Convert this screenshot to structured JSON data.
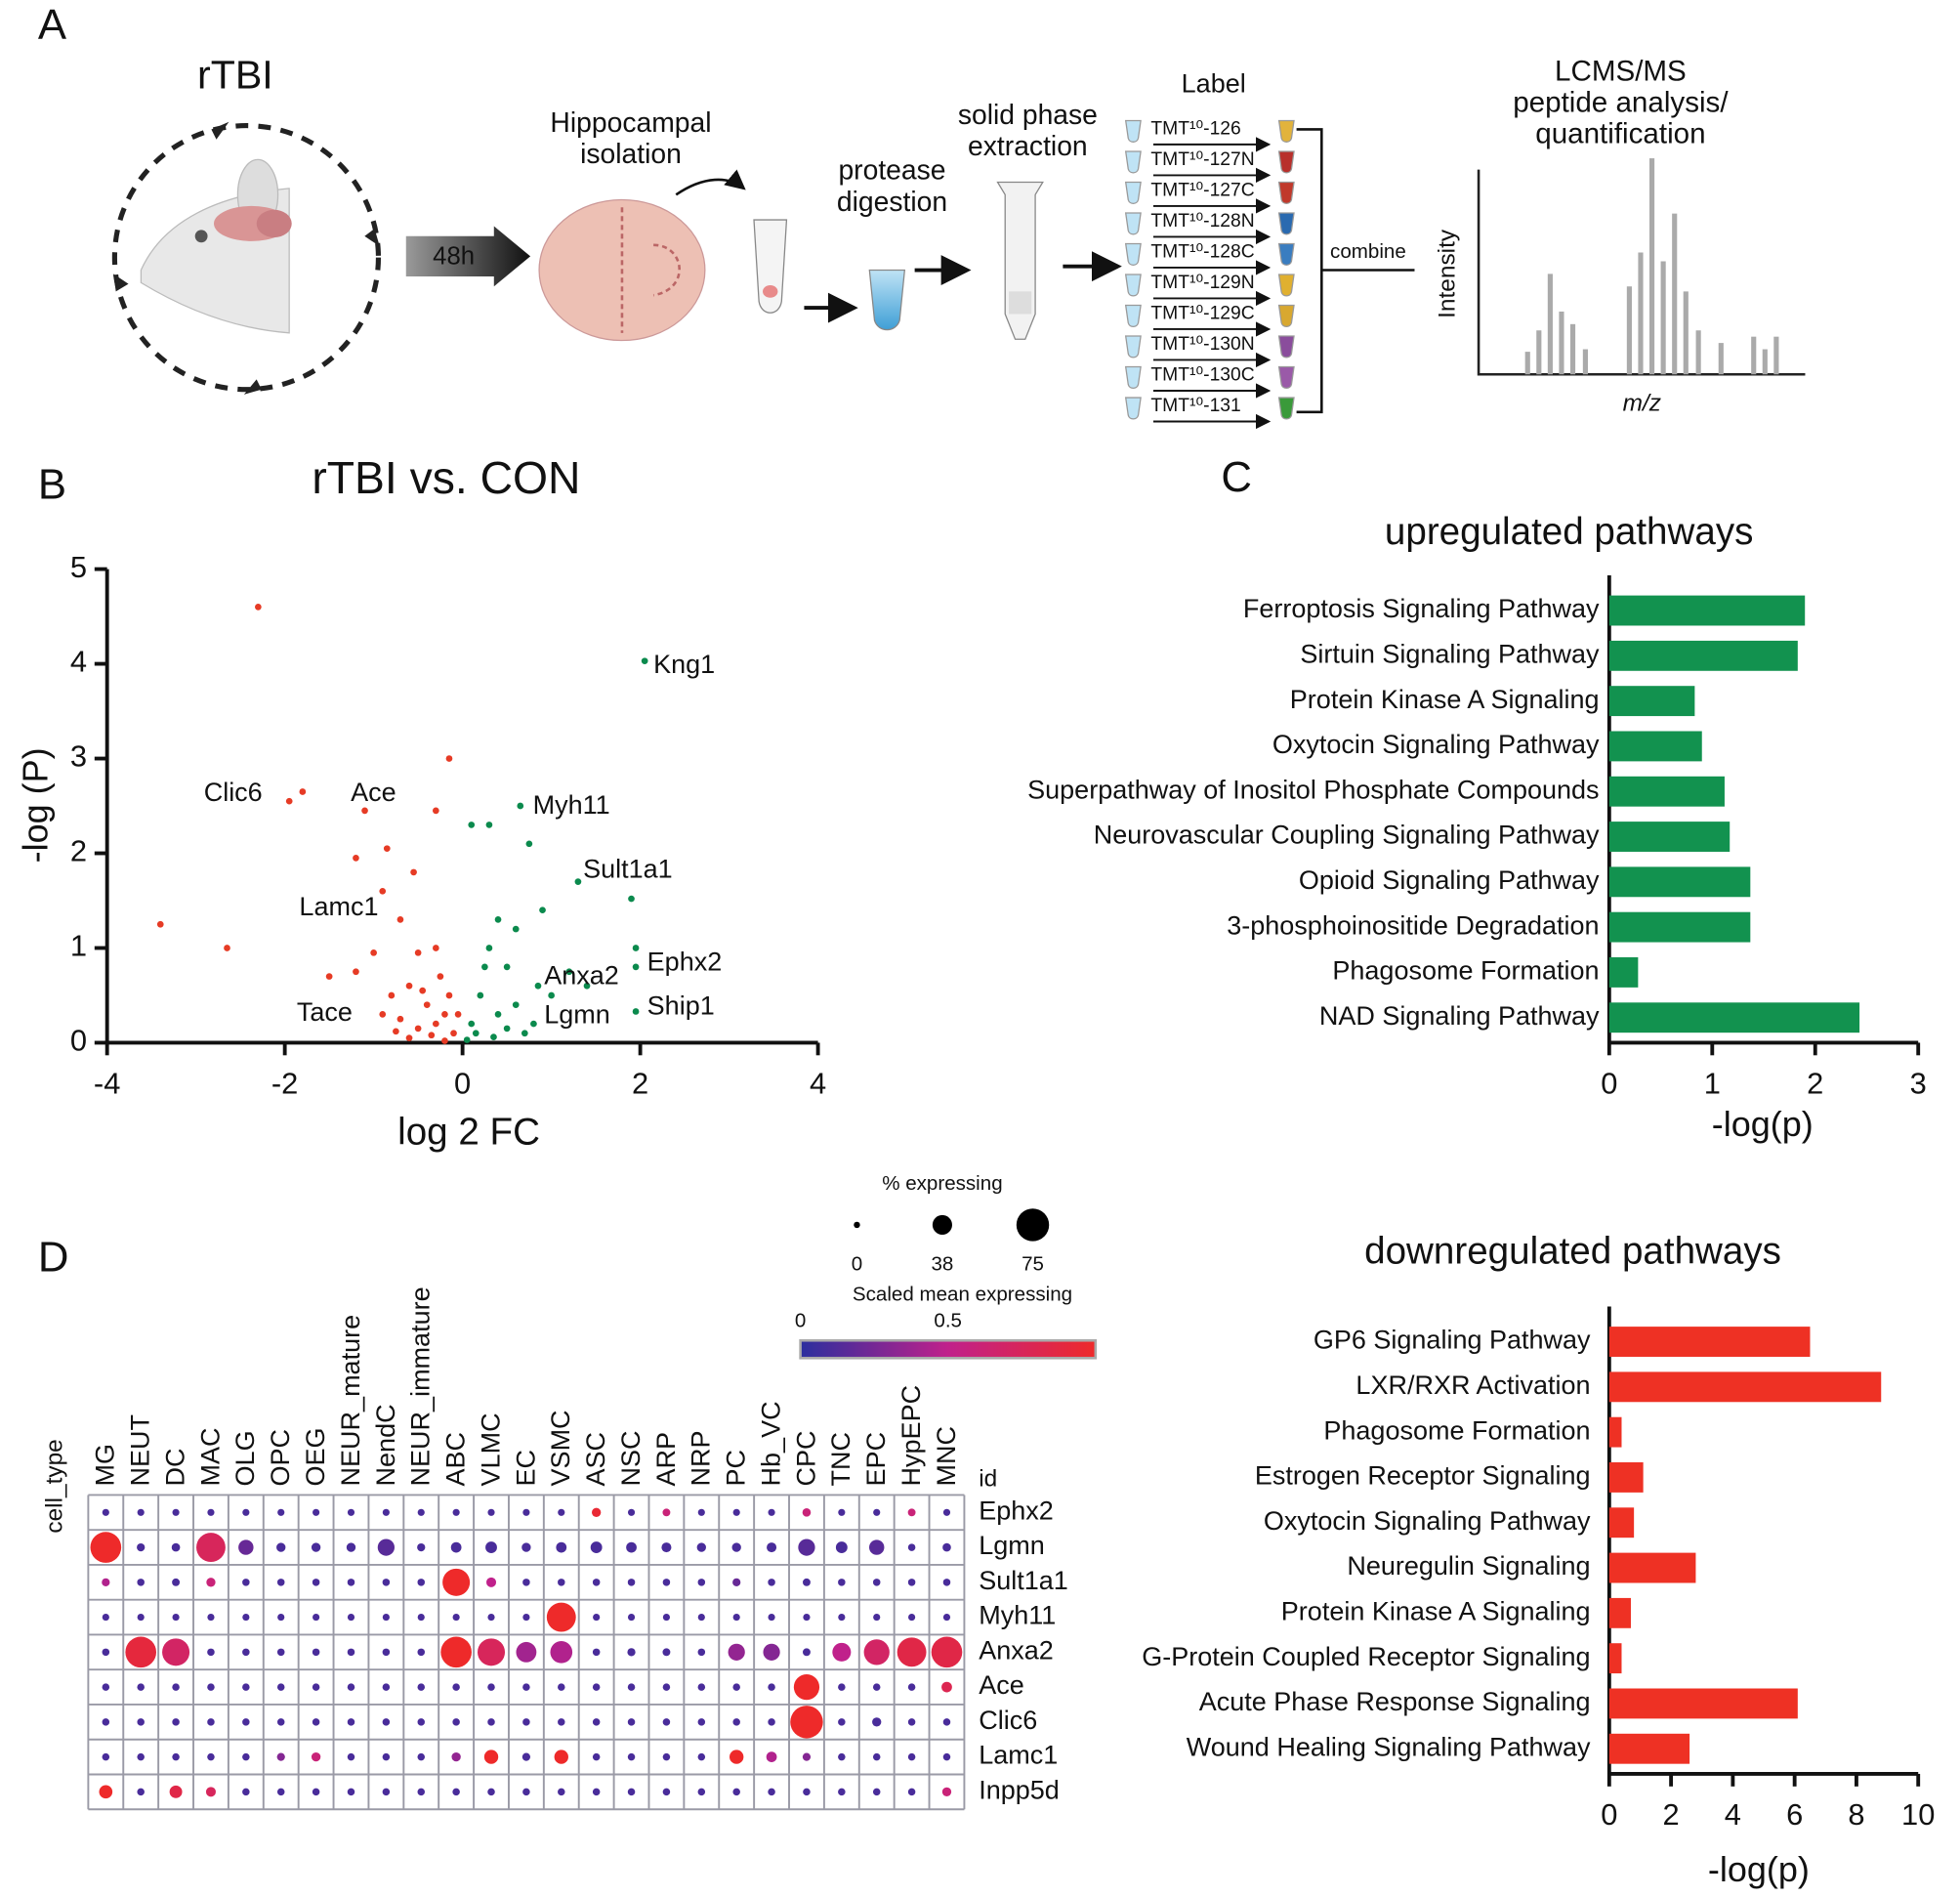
{
  "panel_labels": [
    "A",
    "B",
    "C",
    "D"
  ],
  "panel_a": {
    "model": "rTBI",
    "time": "48h",
    "steps": [
      [
        "Hippocampal",
        "isolation"
      ],
      [
        "protease",
        "digestion"
      ],
      [
        "solid phase",
        "extraction"
      ]
    ],
    "label_title": "Label",
    "tmt": [
      {
        "text": "TMT¹⁰-126",
        "color": "#e2b33c"
      },
      {
        "text": "TMT¹⁰-127N",
        "color": "#b8302c"
      },
      {
        "text": "TMT¹⁰-127C",
        "color": "#c0392b"
      },
      {
        "text": "TMT¹⁰-128N",
        "color": "#2a6ab0"
      },
      {
        "text": "TMT¹⁰-128C",
        "color": "#3a7dc0"
      },
      {
        "text": "TMT¹⁰-129N",
        "color": "#e0b030"
      },
      {
        "text": "TMT¹⁰-129C",
        "color": "#d8a830"
      },
      {
        "text": "TMT¹⁰-130N",
        "color": "#8a4d9c"
      },
      {
        "text": "TMT¹⁰-130C",
        "color": "#9a5aa8"
      },
      {
        "text": "TMT¹⁰-131",
        "color": "#3a9a3a"
      }
    ],
    "combine": "combine",
    "analysis": [
      "LCMS/MS",
      "peptide analysis/",
      "quantification"
    ],
    "y_axis": "Intensity",
    "x_axis": "m/z"
  },
  "chart_data": [
    {
      "type": "scatter",
      "title": "rTBI vs. CON",
      "xlabel": "log 2 FC",
      "ylabel": "-log (P)",
      "xlim": [
        -4,
        4
      ],
      "xticks": [
        -4,
        -2,
        0,
        2,
        4
      ],
      "ylim": [
        0,
        5
      ],
      "yticks": [
        0,
        1,
        2,
        3,
        4,
        5
      ],
      "series": [
        {
          "color": "#e63b25",
          "x": [
            -2.3,
            -0.15,
            -1.8,
            -1.95,
            -1.1,
            -0.3,
            -3.4,
            -2.65,
            -1.2,
            -0.85,
            -0.55,
            -0.9,
            -0.7,
            -1.5,
            -1.0,
            -0.5,
            -0.3,
            -0.6,
            -0.4,
            -0.2,
            -0.8,
            -0.1,
            -0.3,
            -0.5,
            -0.15,
            -0.7,
            -1.2,
            -0.25,
            -0.45,
            -0.35,
            -0.6,
            -0.9,
            -0.2,
            -0.05,
            -0.75
          ],
          "values": [
            4.6,
            3.0,
            2.65,
            2.55,
            2.45,
            2.45,
            1.25,
            1.0,
            1.95,
            2.05,
            1.8,
            1.6,
            1.3,
            0.7,
            0.95,
            0.95,
            1.0,
            0.6,
            0.4,
            0.3,
            0.5,
            0.1,
            0.2,
            0.15,
            0.5,
            0.25,
            0.75,
            0.7,
            0.55,
            0.08,
            0.05,
            0.3,
            0.02,
            0.3,
            0.12
          ]
        },
        {
          "color": "#0b8a4d",
          "x": [
            2.05,
            0.65,
            0.1,
            0.3,
            0.75,
            1.3,
            1.9,
            0.9,
            1.95,
            1.95,
            1.95,
            0.6,
            0.4,
            0.3,
            0.5,
            1.2,
            0.85,
            1.4,
            0.2,
            0.1,
            0.4,
            0.6,
            0.8,
            0.25,
            1.0,
            0.15,
            0.5,
            0.05,
            0.35,
            0.7
          ],
          "values": [
            4.03,
            2.5,
            2.3,
            2.3,
            2.1,
            1.7,
            1.52,
            1.4,
            1.0,
            0.8,
            0.33,
            1.2,
            1.3,
            1.0,
            0.8,
            0.75,
            0.6,
            0.6,
            0.5,
            0.2,
            0.3,
            0.4,
            0.2,
            0.8,
            0.5,
            0.1,
            0.15,
            0.03,
            0.06,
            0.1
          ]
        }
      ],
      "annotations": [
        "Kng1",
        "Myh11",
        "Sult1a1",
        "Ephx2",
        "Ship1",
        "Anxa2",
        "Lgmn",
        "Clic6",
        "Ace",
        "Lamc1",
        "Tace"
      ]
    },
    {
      "type": "bar",
      "orientation": "horizontal",
      "title": "upregulated pathways",
      "xlabel": "-log(p)",
      "color": "#12924f",
      "categories": [
        "Ferroptosis Signaling Pathway",
        "Sirtuin Signaling Pathway",
        "Protein Kinase A Signaling",
        "Oxytocin Signaling Pathway",
        "Superpathway of Inositol Phosphate Compounds",
        "Neurovascular Coupling Signaling Pathway",
        "Opioid Signaling Pathway",
        "3-phosphoinositide Degradation",
        "Phagosome Formation",
        "NAD Signaling Pathway"
      ],
      "values": [
        1.9,
        1.83,
        0.83,
        0.9,
        1.12,
        1.17,
        1.37,
        1.37,
        0.28,
        2.43
      ],
      "xlim": [
        0,
        3
      ],
      "xticks": [
        0,
        1,
        2,
        3
      ]
    },
    {
      "type": "bar",
      "orientation": "horizontal",
      "title": "downregulated pathways",
      "xlabel": "-log(p)",
      "color": "#ee3124",
      "categories": [
        "GP6 Signaling Pathway",
        "LXR/RXR Activation",
        "Phagosome Formation",
        "Estrogen Receptor Signaling",
        "Oxytocin Signaling Pathway",
        "Neuregulin Signaling",
        "Protein Kinase A Signaling",
        "G-Protein Coupled Receptor Signaling",
        "Acute Phase Response Signaling",
        "Wound Healing Signaling Pathway"
      ],
      "values": [
        6.5,
        8.8,
        0.4,
        1.1,
        0.8,
        2.8,
        0.7,
        0.4,
        6.1,
        2.6
      ],
      "xlim": [
        0,
        10
      ],
      "xticks": [
        0,
        2,
        4,
        6,
        8,
        10
      ]
    },
    {
      "type": "dot",
      "column_axis_label": "cell_type",
      "row_axis_label": "id",
      "columns": [
        "MG",
        "NEUT",
        "DC",
        "MAC",
        "OLG",
        "OPC",
        "OEG",
        "NEUR_mature",
        "NendC",
        "NEUR_immature",
        "ABC",
        "VLMC",
        "EC",
        "VSMC",
        "ASC",
        "NSC",
        "ARP",
        "NRP",
        "PC",
        "Hb_VC",
        "CPC",
        "TNC",
        "EPC",
        "HypEPC",
        "MNC"
      ],
      "rows": [
        "Ephx2",
        "Lgmn",
        "Sult1a1",
        "Myh11",
        "Anxa2",
        "Ace",
        "Clic6",
        "Lamc1",
        "Inpp5d"
      ],
      "size_title": "% expressing",
      "sizelim": [
        0,
        75
      ],
      "size_ticks": [
        0,
        38,
        75
      ],
      "color_title": "Scaled mean expressing",
      "colorlim": [
        0,
        1
      ],
      "color_ticks": [
        0,
        0.5
      ],
      "colormap": [
        "#2b2f9e",
        "#c0218b",
        "#ee2a2a"
      ],
      "pct": [
        [
          2,
          2,
          2,
          2,
          2,
          2,
          2,
          2,
          2,
          2,
          2,
          2,
          2,
          2,
          8,
          2,
          4,
          2,
          2,
          2,
          6,
          2,
          2,
          4,
          2
        ],
        [
          70,
          5,
          6,
          65,
          25,
          8,
          8,
          8,
          30,
          5,
          12,
          15,
          8,
          12,
          15,
          12,
          10,
          8,
          8,
          10,
          30,
          15,
          25,
          3,
          6
        ],
        [
          5,
          3,
          4,
          8,
          3,
          3,
          3,
          3,
          3,
          3,
          60,
          10,
          3,
          3,
          3,
          3,
          3,
          3,
          5,
          3,
          4,
          3,
          3,
          3,
          3
        ],
        [
          2,
          2,
          2,
          2,
          2,
          2,
          2,
          2,
          2,
          2,
          2,
          2,
          2,
          65,
          2,
          2,
          2,
          2,
          2,
          2,
          2,
          2,
          2,
          2,
          2
        ],
        [
          3,
          70,
          60,
          3,
          3,
          3,
          3,
          3,
          3,
          3,
          70,
          60,
          40,
          45,
          3,
          5,
          4,
          3,
          30,
          30,
          4,
          35,
          55,
          65,
          70
        ],
        [
          3,
          3,
          3,
          3,
          3,
          3,
          3,
          3,
          3,
          3,
          3,
          3,
          3,
          3,
          3,
          3,
          3,
          3,
          3,
          3,
          55,
          3,
          3,
          3,
          12
        ],
        [
          3,
          3,
          3,
          3,
          3,
          3,
          3,
          3,
          3,
          3,
          3,
          3,
          3,
          3,
          3,
          3,
          3,
          3,
          3,
          3,
          75,
          3,
          8,
          3,
          3
        ],
        [
          3,
          3,
          3,
          3,
          3,
          5,
          8,
          3,
          3,
          3,
          8,
          22,
          5,
          22,
          3,
          3,
          3,
          3,
          22,
          12,
          5,
          3,
          3,
          3,
          3
        ],
        [
          20,
          3,
          18,
          10,
          3,
          3,
          3,
          3,
          3,
          3,
          3,
          3,
          3,
          3,
          3,
          3,
          3,
          3,
          3,
          3,
          3,
          3,
          3,
          3,
          8
        ]
      ],
      "mean": [
        [
          0.1,
          0.1,
          0.1,
          0.1,
          0.1,
          0.1,
          0.1,
          0.1,
          0.1,
          0.1,
          0.1,
          0.1,
          0.1,
          0.1,
          0.95,
          0.1,
          0.6,
          0.1,
          0.1,
          0.1,
          0.6,
          0.1,
          0.1,
          0.6,
          0.1
        ],
        [
          1.0,
          0.1,
          0.1,
          0.75,
          0.2,
          0.1,
          0.1,
          0.1,
          0.15,
          0.1,
          0.1,
          0.1,
          0.1,
          0.1,
          0.1,
          0.1,
          0.1,
          0.1,
          0.1,
          0.1,
          0.15,
          0.1,
          0.15,
          0.1,
          0.1
        ],
        [
          0.45,
          0.1,
          0.1,
          0.6,
          0.1,
          0.1,
          0.1,
          0.1,
          0.1,
          0.1,
          1.0,
          0.5,
          0.1,
          0.1,
          0.1,
          0.1,
          0.1,
          0.1,
          0.2,
          0.1,
          0.1,
          0.1,
          0.1,
          0.1,
          0.1
        ],
        [
          0.1,
          0.1,
          0.1,
          0.1,
          0.1,
          0.1,
          0.1,
          0.1,
          0.1,
          0.1,
          0.1,
          0.1,
          0.1,
          1.0,
          0.1,
          0.1,
          0.1,
          0.1,
          0.1,
          0.1,
          0.1,
          0.1,
          0.1,
          0.1,
          0.1
        ],
        [
          0.1,
          0.9,
          0.7,
          0.1,
          0.1,
          0.1,
          0.1,
          0.1,
          0.1,
          0.1,
          1.0,
          0.75,
          0.4,
          0.45,
          0.1,
          0.1,
          0.1,
          0.1,
          0.35,
          0.3,
          0.1,
          0.5,
          0.7,
          0.85,
          0.85
        ],
        [
          0.1,
          0.1,
          0.1,
          0.1,
          0.1,
          0.1,
          0.1,
          0.1,
          0.1,
          0.1,
          0.1,
          0.1,
          0.1,
          0.1,
          0.1,
          0.1,
          0.1,
          0.1,
          0.1,
          0.1,
          1.0,
          0.1,
          0.1,
          0.1,
          0.8
        ],
        [
          0.1,
          0.1,
          0.1,
          0.1,
          0.1,
          0.1,
          0.1,
          0.1,
          0.1,
          0.1,
          0.1,
          0.1,
          0.1,
          0.1,
          0.1,
          0.1,
          0.1,
          0.1,
          0.1,
          0.1,
          1.0,
          0.1,
          0.1,
          0.1,
          0.1
        ],
        [
          0.1,
          0.1,
          0.1,
          0.1,
          0.1,
          0.3,
          0.6,
          0.1,
          0.1,
          0.1,
          0.35,
          1.0,
          0.1,
          1.0,
          0.1,
          0.1,
          0.1,
          0.1,
          1.0,
          0.45,
          0.3,
          0.1,
          0.1,
          0.1,
          0.1
        ],
        [
          1.0,
          0.1,
          0.85,
          0.75,
          0.1,
          0.1,
          0.1,
          0.1,
          0.1,
          0.1,
          0.1,
          0.1,
          0.1,
          0.1,
          0.1,
          0.1,
          0.1,
          0.1,
          0.1,
          0.1,
          0.1,
          0.1,
          0.1,
          0.1,
          0.6
        ]
      ]
    }
  ]
}
